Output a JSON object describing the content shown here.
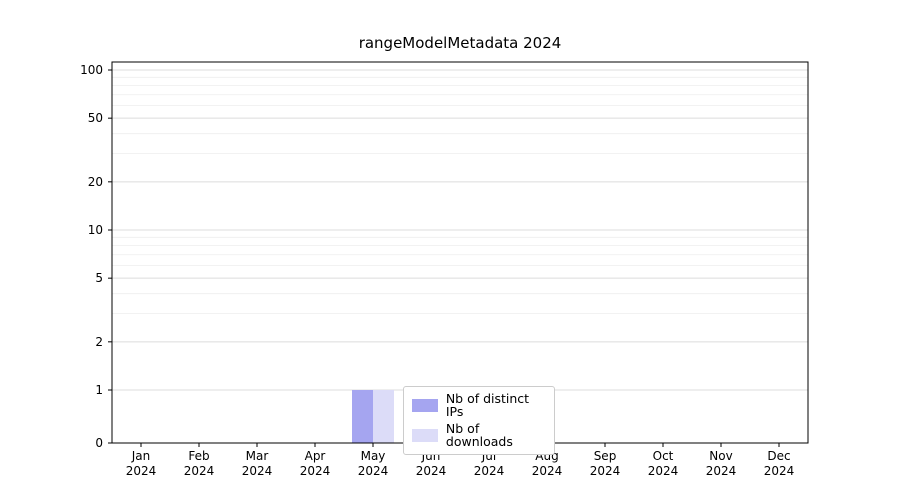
{
  "chart_data": {
    "type": "bar",
    "title": "rangeModelMetadata 2024",
    "categories": [
      "Jan",
      "Feb",
      "Mar",
      "Apr",
      "May",
      "Jun",
      "Jul",
      "Aug",
      "Sep",
      "Oct",
      "Nov",
      "Dec"
    ],
    "year_label": "2024",
    "series": [
      {
        "name": "Nb of distinct IPs",
        "color": "#a5a5f0",
        "values": [
          0,
          0,
          0,
          0,
          1,
          0,
          0,
          0,
          0,
          0,
          0,
          0
        ]
      },
      {
        "name": "Nb of downloads",
        "color": "#dcdcf8",
        "values": [
          0,
          0,
          0,
          0,
          1,
          0,
          0,
          0,
          0,
          0,
          0,
          0
        ]
      }
    ],
    "yscale": "symlog",
    "yticks": [
      0,
      1,
      2,
      5,
      10,
      20,
      50,
      100
    ],
    "ytick_labels": [
      "0",
      "1",
      "2",
      "5",
      "10",
      "20",
      "50",
      "100"
    ],
    "y_minor_gridlines": [
      3,
      4,
      6,
      7,
      8,
      9,
      30,
      40,
      60,
      70,
      80,
      90
    ],
    "ylim": [
      0,
      112
    ],
    "grid": "horizontal",
    "legend_position": "inside-bottom-center",
    "colors": {
      "axis": "#000000",
      "major_grid": "#dcdcdc",
      "minor_grid": "#eeeeee",
      "text": "#000000"
    }
  }
}
